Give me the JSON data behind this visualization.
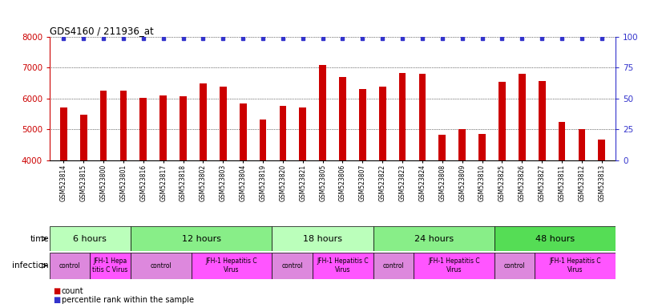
{
  "title": "GDS4160 / 211936_at",
  "samples": [
    "GSM523814",
    "GSM523815",
    "GSM523800",
    "GSM523801",
    "GSM523816",
    "GSM523817",
    "GSM523818",
    "GSM523802",
    "GSM523803",
    "GSM523804",
    "GSM523819",
    "GSM523820",
    "GSM523821",
    "GSM523805",
    "GSM523806",
    "GSM523807",
    "GSM523822",
    "GSM523823",
    "GSM523824",
    "GSM523808",
    "GSM523809",
    "GSM523810",
    "GSM523825",
    "GSM523826",
    "GSM523827",
    "GSM523811",
    "GSM523812",
    "GSM523813"
  ],
  "counts": [
    5700,
    5480,
    6250,
    6270,
    6010,
    6100,
    6080,
    6490,
    6390,
    5850,
    5330,
    5760,
    5720,
    7080,
    6710,
    6300,
    6380,
    6820,
    6810,
    4820,
    5020,
    4840,
    6540,
    6800,
    6570,
    5240,
    5020,
    4680
  ],
  "percentile_ranks": [
    99,
    99,
    99,
    99,
    99,
    99,
    99,
    99,
    99,
    99,
    99,
    99,
    99,
    99,
    99,
    99,
    99,
    99,
    99,
    99,
    99,
    99,
    99,
    99,
    99,
    99,
    99,
    99
  ],
  "bar_color": "#cc0000",
  "dot_color": "#3333cc",
  "ylim_left": [
    4000,
    8000
  ],
  "ylim_right": [
    0,
    100
  ],
  "yticks_left": [
    4000,
    5000,
    6000,
    7000,
    8000
  ],
  "yticks_right": [
    0,
    25,
    50,
    75,
    100
  ],
  "dotted_lines": [
    4000,
    5000,
    6000,
    7000,
    8000
  ],
  "time_groups": [
    {
      "label": "6 hours",
      "start": 0,
      "end": 4,
      "color": "#bbffbb"
    },
    {
      "label": "12 hours",
      "start": 4,
      "end": 11,
      "color": "#88ee88"
    },
    {
      "label": "18 hours",
      "start": 11,
      "end": 16,
      "color": "#bbffbb"
    },
    {
      "label": "24 hours",
      "start": 16,
      "end": 22,
      "color": "#88ee88"
    },
    {
      "label": "48 hours",
      "start": 22,
      "end": 28,
      "color": "#55dd55"
    }
  ],
  "infection_groups": [
    {
      "label": "control",
      "start": 0,
      "end": 2,
      "color": "#dd88dd"
    },
    {
      "label": "JFH-1 Hepa\ntitis C Virus",
      "start": 2,
      "end": 4,
      "color": "#ff55ff"
    },
    {
      "label": "control",
      "start": 4,
      "end": 7,
      "color": "#dd88dd"
    },
    {
      "label": "JFH-1 Hepatitis C\nVirus",
      "start": 7,
      "end": 11,
      "color": "#ff55ff"
    },
    {
      "label": "control",
      "start": 11,
      "end": 13,
      "color": "#dd88dd"
    },
    {
      "label": "JFH-1 Hepatitis C\nVirus",
      "start": 13,
      "end": 16,
      "color": "#ff55ff"
    },
    {
      "label": "control",
      "start": 16,
      "end": 18,
      "color": "#dd88dd"
    },
    {
      "label": "JFH-1 Hepatitis C\nVirus",
      "start": 18,
      "end": 22,
      "color": "#ff55ff"
    },
    {
      "label": "control",
      "start": 22,
      "end": 24,
      "color": "#dd88dd"
    },
    {
      "label": "JFH-1 Hepatitis C\nVirus",
      "start": 24,
      "end": 28,
      "color": "#ff55ff"
    }
  ],
  "legend_count_color": "#cc0000",
  "legend_pct_color": "#3333cc",
  "bg_color": "#ffffff",
  "tick_color_left": "#cc0000",
  "tick_color_right": "#3333cc",
  "bar_width": 0.35
}
